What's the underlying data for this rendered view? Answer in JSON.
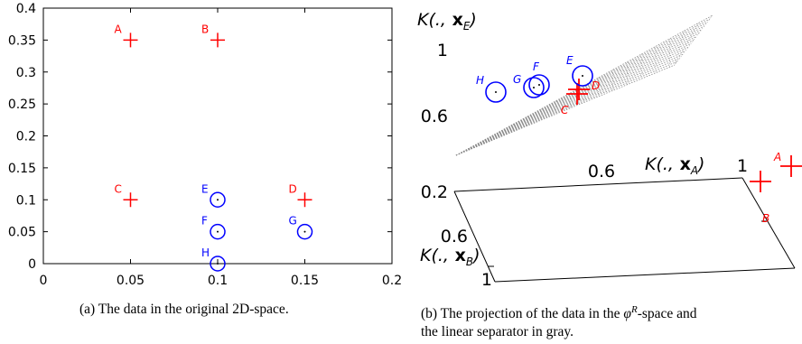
{
  "chart_data": [
    {
      "type": "scatter",
      "xlim": [
        0,
        0.2
      ],
      "ylim": [
        0,
        0.4
      ],
      "x_ticks": [
        "0",
        "0.05",
        "0.1",
        "0.15",
        "0.2"
      ],
      "y_ticks": [
        "0",
        "0.05",
        "0.1",
        "0.15",
        "0.2",
        "0.25",
        "0.3",
        "0.35",
        "0.4"
      ],
      "grid": false,
      "points": [
        {
          "label": "A",
          "x": 0.05,
          "y": 0.35,
          "marker": "plus",
          "color": "#ff0000"
        },
        {
          "label": "B",
          "x": 0.1,
          "y": 0.35,
          "marker": "plus",
          "color": "#ff0000"
        },
        {
          "label": "C",
          "x": 0.05,
          "y": 0.1,
          "marker": "plus",
          "color": "#ff0000"
        },
        {
          "label": "D",
          "x": 0.15,
          "y": 0.1,
          "marker": "plus",
          "color": "#ff0000"
        },
        {
          "label": "E",
          "x": 0.1,
          "y": 0.1,
          "marker": "circle",
          "color": "#0000ff"
        },
        {
          "label": "F",
          "x": 0.1,
          "y": 0.05,
          "marker": "circle",
          "color": "#0000ff"
        },
        {
          "label": "G",
          "x": 0.15,
          "y": 0.05,
          "marker": "circle",
          "color": "#0000ff"
        },
        {
          "label": "H",
          "x": 0.1,
          "y": 0.0,
          "marker": "circle",
          "color": "#0000ff"
        }
      ],
      "caption": "(a)  The data in the original 2D-space."
    },
    {
      "type": "scatter3d",
      "axis_labels": {
        "x": "K(., x_A)",
        "y": "K(., x_B)",
        "z": "K(., x_E)"
      },
      "x_ticks": [
        "0.6",
        "1"
      ],
      "y_ticks": [
        "0.6",
        "1"
      ],
      "z_ticks": [
        "0.2",
        "0.6",
        "1"
      ],
      "separator": "linear separator in gray",
      "points": [
        {
          "label": "A",
          "marker": "plus",
          "color": "#ff0000"
        },
        {
          "label": "B",
          "marker": "plus",
          "color": "#ff0000"
        },
        {
          "label": "C",
          "marker": "plus",
          "color": "#ff0000"
        },
        {
          "label": "D",
          "marker": "plus",
          "color": "#ff0000"
        },
        {
          "label": "E",
          "marker": "circle",
          "color": "#0000ff"
        },
        {
          "label": "F",
          "marker": "circle",
          "color": "#0000ff"
        },
        {
          "label": "G",
          "marker": "circle",
          "color": "#0000ff"
        },
        {
          "label": "H",
          "marker": "circle",
          "color": "#0000ff"
        }
      ],
      "caption_line1": "(b)  The projection of the data in the ",
      "caption_phi": "φ",
      "caption_sup": "R",
      "caption_line1_end": "-space and",
      "caption_line2": "the linear separator in gray."
    }
  ]
}
